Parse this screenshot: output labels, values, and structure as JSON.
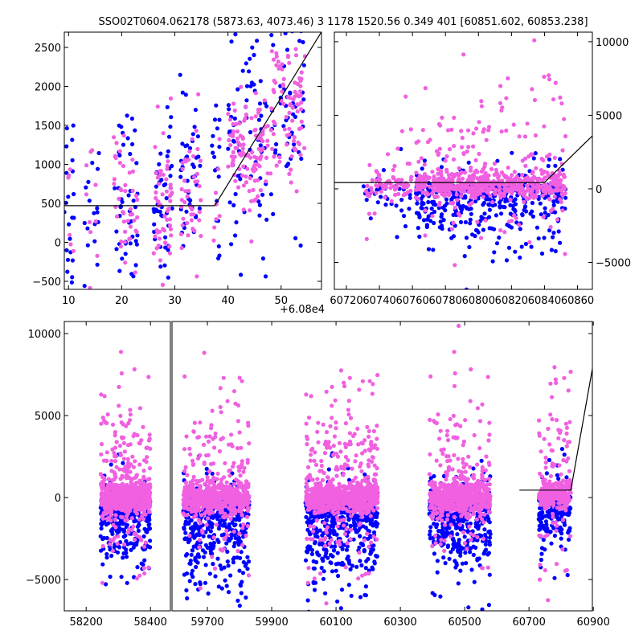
{
  "title": "SSO02T0604.062178 (5873.63, 4073.46)   3 1178 1520.56 0.349 401 [60851.602, 60853.238]",
  "colors": {
    "pink": "#f060e0",
    "blue": "#0000ff",
    "line": "#000000"
  },
  "chart_data": [
    {
      "name": "top-left",
      "type": "scatter",
      "x_offset_label": "+6.08e4",
      "xlim": [
        9.2,
        57.6
      ],
      "ylim": [
        -603,
        2696
      ],
      "xticks": [
        10,
        20,
        30,
        40,
        50
      ],
      "xtick_labels": [
        "10",
        "20",
        "30",
        "40",
        "50"
      ],
      "yticks": [
        -500,
        0,
        500,
        1000,
        1500,
        2000,
        2500
      ],
      "ytick_labels": [
        "−500",
        "0",
        "500",
        "1000",
        "1500",
        "2000",
        "2500"
      ],
      "yaxis_side": "left",
      "model_line": [
        [
          9.2,
          470
        ],
        [
          37.5,
          470
        ],
        [
          57.6,
          2700
        ]
      ],
      "clusters": [
        {
          "x": [
            9.2,
            11
          ],
          "n_pink": 6,
          "n_blue": 22,
          "center": 600,
          "pink_sd": 400,
          "blue_sd": 700
        },
        {
          "x": [
            13,
            16
          ],
          "n_pink": 10,
          "n_blue": 18,
          "center": 500,
          "pink_sd": 450,
          "blue_sd": 650
        },
        {
          "x": [
            18.5,
            23
          ],
          "n_pink": 45,
          "n_blue": 45,
          "center": 500,
          "pink_sd": 400,
          "blue_sd": 600
        },
        {
          "x": [
            26,
            29.5
          ],
          "n_pink": 55,
          "n_blue": 45,
          "center": 550,
          "pink_sd": 450,
          "blue_sd": 550
        },
        {
          "x": [
            31,
            35
          ],
          "n_pink": 45,
          "n_blue": 45,
          "center": 650,
          "pink_sd": 450,
          "blue_sd": 550
        },
        {
          "x": [
            37,
            38.5
          ],
          "n_pink": 8,
          "n_blue": 18,
          "center": 550,
          "pink_sd": 500,
          "blue_sd": 700
        },
        {
          "x": [
            40,
            47.5
          ],
          "n_pink": 110,
          "n_blue": 75,
          "center": 1150,
          "pink_sd": 400,
          "blue_sd": 650
        },
        {
          "x": [
            48,
            54.5
          ],
          "n_pink": 90,
          "n_blue": 60,
          "center": 1700,
          "pink_sd": 450,
          "blue_sd": 700
        }
      ]
    },
    {
      "name": "top-right",
      "type": "scatter",
      "xlim": [
        60712.7,
        60869
      ],
      "ylim": [
        -6830,
        10650
      ],
      "xticks": [
        60720,
        60740,
        60760,
        60780,
        60800,
        60820,
        60840,
        60860
      ],
      "xtick_labels": [
        "60720",
        "60740",
        "60760",
        "60780",
        "60800",
        "60820",
        "60840",
        "60860"
      ],
      "yticks": [
        -5000,
        0,
        5000,
        10000
      ],
      "ytick_labels": [
        "−5000",
        "0",
        "5000",
        "10000"
      ],
      "yaxis_side": "right",
      "model_line": [
        [
          60712.7,
          430
        ],
        [
          60840,
          430
        ],
        [
          60869,
          3600
        ]
      ],
      "clusters": [
        {
          "x": [
            60730,
            60760
          ],
          "n_pink": 70,
          "n_blue": 40,
          "center": 200,
          "pink_sd": 700,
          "blue_sd": 1500
        },
        {
          "x": [
            60762,
            60853
          ],
          "n_pink": 650,
          "n_blue": 450,
          "center": 300,
          "pink_sd": 650,
          "blue_sd": 1900
        }
      ]
    },
    {
      "name": "bottom",
      "type": "scatter",
      "broken_axis": true,
      "segments": [
        {
          "xlim": [
            58132,
            58462
          ],
          "xticks": [
            58200,
            58400
          ],
          "xtick_labels": [
            "58200",
            "58400"
          ]
        },
        {
          "xlim": [
            59590,
            60897
          ],
          "xticks": [
            59700,
            59900,
            60100,
            60300,
            60500,
            60700,
            60900
          ],
          "xtick_labels": [
            "59700",
            "59900",
            "60100",
            "60300",
            "60500",
            "60700",
            "60900"
          ]
        }
      ],
      "ylim": [
        -6910,
        10735
      ],
      "yticks": [
        -5000,
        0,
        5000,
        10000
      ],
      "ytick_labels": [
        "−5000",
        "0",
        "5000",
        "10000"
      ],
      "yaxis_side": "left",
      "model_line": [
        [
          60670,
          450
        ],
        [
          60830,
          450
        ],
        [
          60930,
          11500
        ]
      ],
      "clusters": [
        {
          "x": [
            58245,
            58400
          ],
          "n_pink": 650,
          "n_blue": 350,
          "center": 0,
          "pink_sd": 700,
          "blue_sd": 2200
        },
        {
          "x": [
            59625,
            59830
          ],
          "n_pink": 650,
          "n_blue": 450,
          "center": 0,
          "pink_sd": 700,
          "blue_sd": 2600
        },
        {
          "x": [
            60005,
            60230
          ],
          "n_pink": 800,
          "n_blue": 550,
          "center": 0,
          "pink_sd": 700,
          "blue_sd": 2600
        },
        {
          "x": [
            60390,
            60580
          ],
          "n_pink": 650,
          "n_blue": 450,
          "center": 0,
          "pink_sd": 700,
          "blue_sd": 2400
        },
        {
          "x": [
            60730,
            60830
          ],
          "n_pink": 300,
          "n_blue": 200,
          "center": 200,
          "pink_sd": 700,
          "blue_sd": 1800
        }
      ]
    }
  ]
}
